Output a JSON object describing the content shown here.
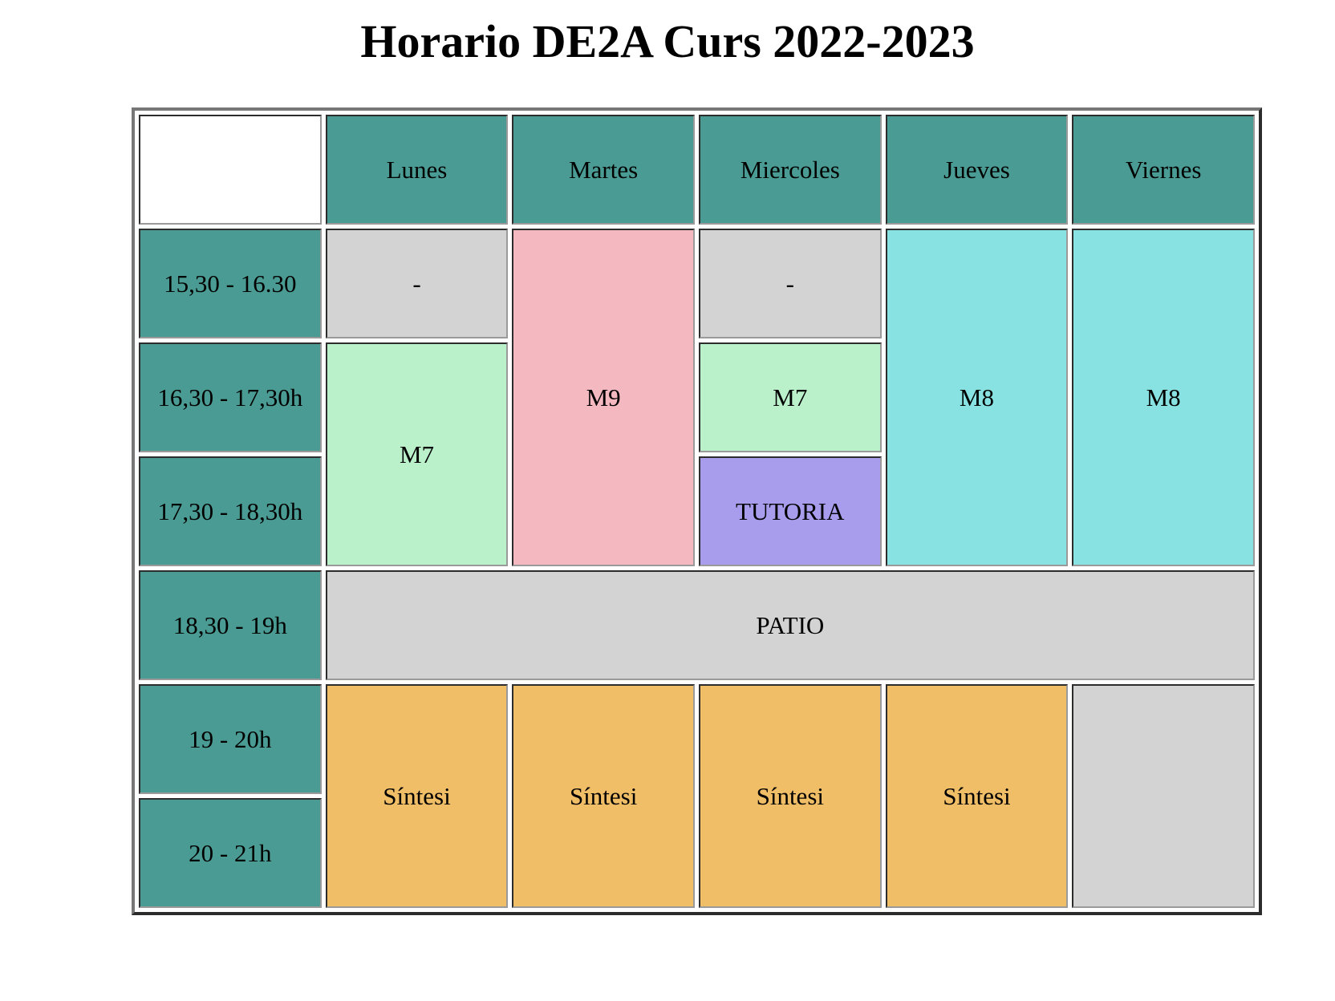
{
  "title": "Horario DE2A Curs 2022-2023",
  "days": [
    "Lunes",
    "Martes",
    "Miercoles",
    "Jueves",
    "Viernes"
  ],
  "times": [
    "15,30 - 16.30",
    "16,30 - 17,30h",
    "17,30 - 18,30h",
    "18,30 - 19h",
    "19 - 20h",
    "20 - 21h"
  ],
  "cells": {
    "lunes_1": "-",
    "lunes_2": "M7",
    "lunes_5": "Síntesi",
    "martes_1": "M9",
    "martes_5": "Síntesi",
    "miercoles_1": "-",
    "miercoles_2": "M7",
    "miercoles_3": "TUTORIA",
    "miercoles_5": "Síntesi",
    "jueves_1": "M8",
    "jueves_5": "Síntesi",
    "viernes_1": "M8",
    "viernes_5": "",
    "patio": "PATIO"
  },
  "colors": {
    "header": "#4a9b93",
    "empty": "#d3d3d3",
    "M7": "#baf0ca",
    "M9": "#f4b8c1",
    "M8": "#88e2e2",
    "TUTORIA": "#a89cec",
    "Síntesi": "#f0be67"
  }
}
